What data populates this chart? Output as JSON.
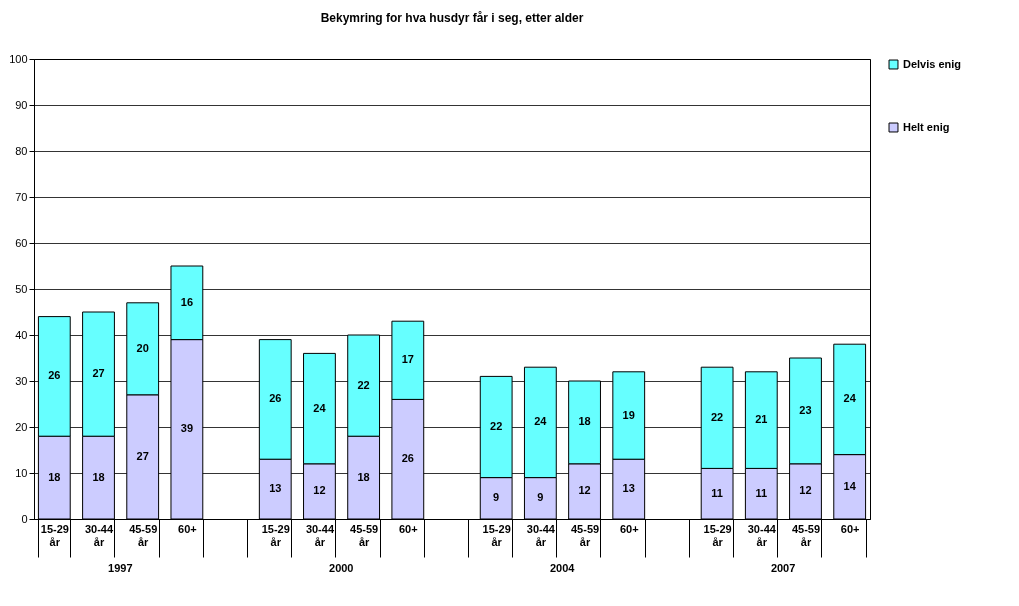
{
  "chart_data": {
    "type": "bar",
    "title": "Bekymring for hva husdyr får i seg, etter alder",
    "categories": [
      "15-29 år",
      "30-44 år",
      "45-59 år",
      "60+",
      null,
      "15-29 år",
      "30-44 år",
      "45-59 år",
      "60+",
      null,
      "15-29 år",
      "30-44 år",
      "45-59 år",
      "60+",
      null,
      "15-29 år",
      "30-44 år",
      "45-59 år",
      "60+"
    ],
    "annotations": [
      "1997",
      "2000",
      "2004",
      "2007"
    ],
    "stacked": true,
    "data_labels": true,
    "ylim": [
      0,
      100
    ],
    "yticks": [
      0,
      10,
      20,
      30,
      40,
      50,
      60,
      70,
      80,
      90,
      100
    ],
    "grid": "y",
    "legend": "right",
    "series": [
      {
        "name": "Helt enig",
        "color": "#ccccff",
        "values": [
          18,
          18,
          27,
          39,
          null,
          13,
          12,
          18,
          26,
          null,
          9,
          9,
          12,
          13,
          null,
          11,
          11,
          12,
          14
        ]
      },
      {
        "name": "Delvis enig",
        "color": "#66ffff",
        "values": [
          26,
          27,
          20,
          16,
          null,
          26,
          24,
          22,
          17,
          null,
          22,
          24,
          18,
          19,
          null,
          22,
          21,
          23,
          24
        ]
      }
    ]
  }
}
